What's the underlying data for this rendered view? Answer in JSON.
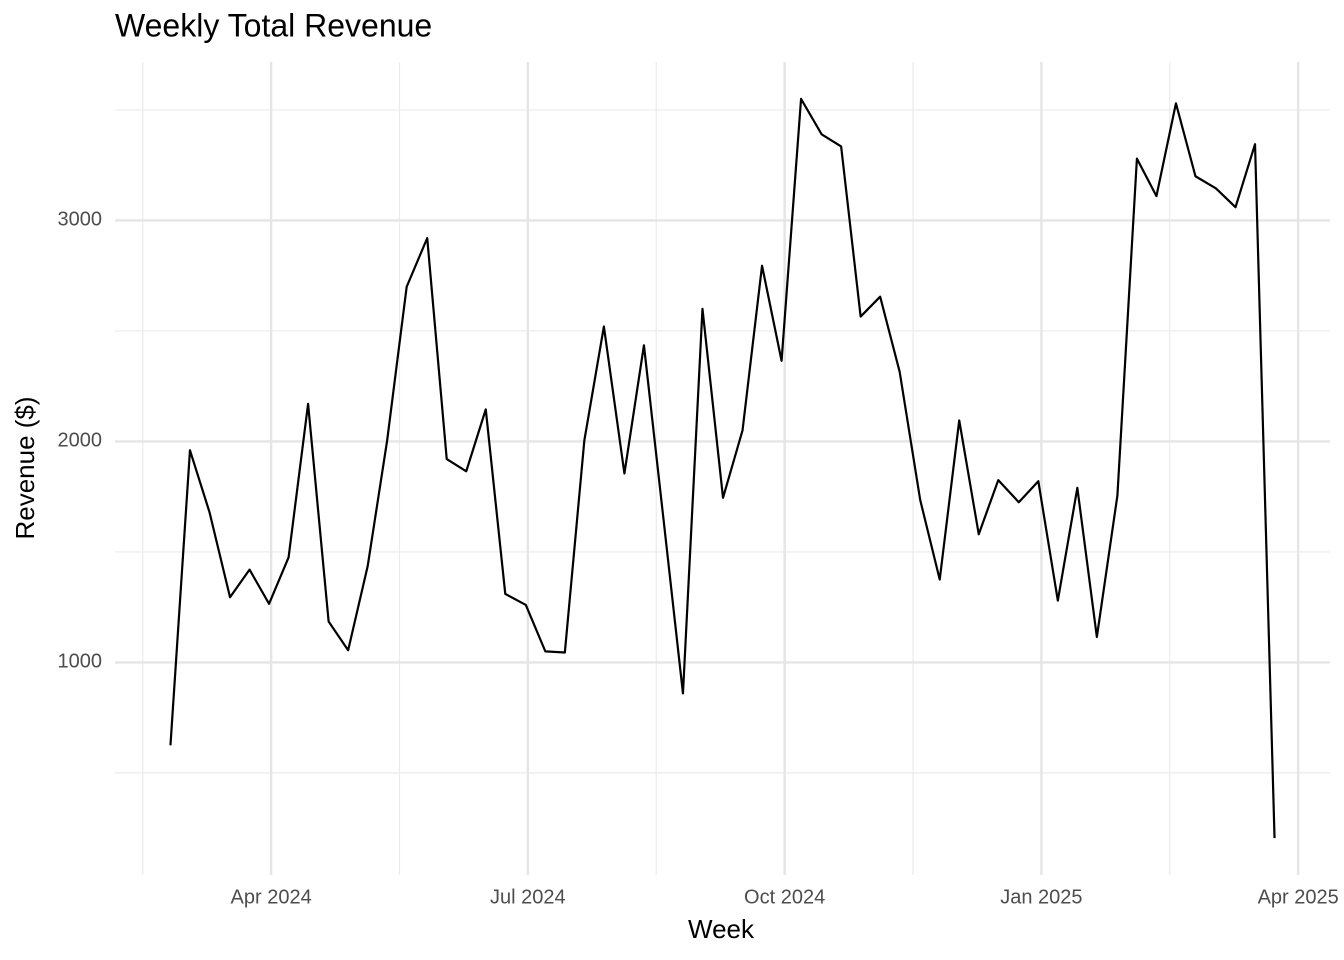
{
  "chart_data": {
    "type": "line",
    "title": "Weekly Total Revenue",
    "x_label": "Week",
    "y_label": "Revenue ($)",
    "x": [
      2024.152,
      2024.171,
      2024.19,
      2024.21,
      2024.229,
      2024.248,
      2024.267,
      2024.286,
      2024.306,
      2024.325,
      2024.344,
      2024.363,
      2024.382,
      2024.402,
      2024.421,
      2024.44,
      2024.459,
      2024.478,
      2024.498,
      2024.517,
      2024.536,
      2024.555,
      2024.574,
      2024.594,
      2024.613,
      2024.632,
      2024.651,
      2024.67,
      2024.69,
      2024.709,
      2024.728,
      2024.747,
      2024.766,
      2024.786,
      2024.805,
      2024.824,
      2024.843,
      2024.862,
      2024.882,
      2024.901,
      2024.92,
      2024.939,
      2024.958,
      2024.978,
      2024.997,
      2025.016,
      2025.035,
      2025.054,
      2025.074,
      2025.093,
      2025.112,
      2025.131,
      2025.15,
      2025.17,
      2025.189,
      2025.208,
      2025.227
    ],
    "series": [
      {
        "name": "Revenue",
        "color": "#000000",
        "values": [
          625,
          1960,
          1680,
          1295,
          1420,
          1265,
          1475,
          2170,
          1185,
          1055,
          1435,
          2005,
          2700,
          2920,
          1920,
          1865,
          2145,
          1310,
          1260,
          1050,
          1045,
          2005,
          2520,
          1855,
          2435,
          1650,
          860,
          2600,
          1745,
          2050,
          2795,
          2365,
          3550,
          3390,
          3335,
          2565,
          2655,
          2315,
          1735,
          1375,
          2095,
          1580,
          1825,
          1725,
          1820,
          1280,
          1790,
          1115,
          1755,
          3280,
          3110,
          3530,
          3200,
          3145,
          3060,
          3345,
          205
        ]
      }
    ],
    "xlim": [
      2024.098,
      2025.281
    ],
    "xticks": [
      {
        "value": 2024.25,
        "label": "Apr 2024"
      },
      {
        "value": 2024.5,
        "label": "Jul 2024"
      },
      {
        "value": 2024.75,
        "label": "Oct 2024"
      },
      {
        "value": 2025.0,
        "label": "Jan 2025"
      },
      {
        "value": 2025.25,
        "label": "Apr 2025"
      }
    ],
    "x_minor_breaks": [
      2024.125,
      2024.375,
      2024.625,
      2024.875,
      2025.125
    ],
    "ylim": [
      38,
      3717
    ],
    "yticks": [
      1000,
      2000,
      3000
    ],
    "y_minor_breaks": [
      500,
      1500,
      2500,
      3500
    ],
    "grid": true
  }
}
